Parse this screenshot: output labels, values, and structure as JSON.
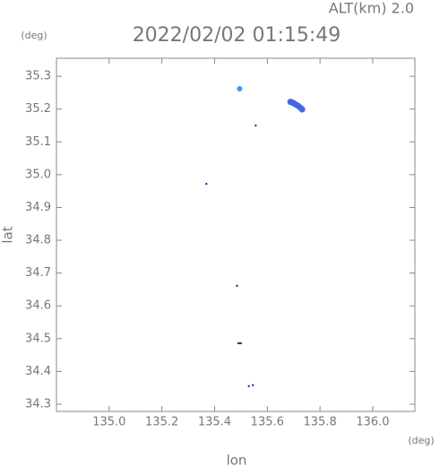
{
  "chart_data": {
    "type": "scatter",
    "title": "2022/02/02 01:15:49",
    "subtitle": "ALT(km) 2.0",
    "y_unit": "(deg)",
    "x_unit": "(deg)",
    "x_label": "lon",
    "y_label": "lat",
    "xlim": [
      134.8,
      136.16
    ],
    "ylim": [
      34.278,
      35.355
    ],
    "xticks": [
      {
        "value": 135,
        "label": "135.0"
      },
      135.2,
      135.4,
      135.6,
      135.8,
      {
        "value": 136,
        "label": "136.0"
      }
    ],
    "yticks": [
      34.3,
      34.4,
      34.5,
      34.6,
      34.7,
      34.8,
      34.9,
      {
        "value": 35,
        "label": "35.0"
      },
      35.1,
      35.2,
      35.3
    ],
    "series": [
      {
        "color": "#3399ff",
        "marker_size": 3,
        "x": [
          135.495
        ],
        "y": [
          35.262
        ]
      },
      {
        "color": "#4169e1",
        "marker_size": 3.5,
        "x": [
          135.688,
          135.695,
          135.702,
          135.71,
          135.718,
          135.726,
          135.732
        ],
        "y": [
          35.222,
          35.22,
          35.217,
          35.213,
          35.209,
          35.204,
          35.199
        ]
      },
      {
        "color": "#2233aa",
        "marker_size": 1.2,
        "x": [
          135.556,
          135.369,
          135.485,
          135.49,
          135.495,
          135.5,
          135.53,
          135.545
        ],
        "y": [
          35.15,
          34.972,
          34.661,
          34.486,
          34.486,
          34.486,
          34.355,
          34.358
        ]
      }
    ]
  }
}
